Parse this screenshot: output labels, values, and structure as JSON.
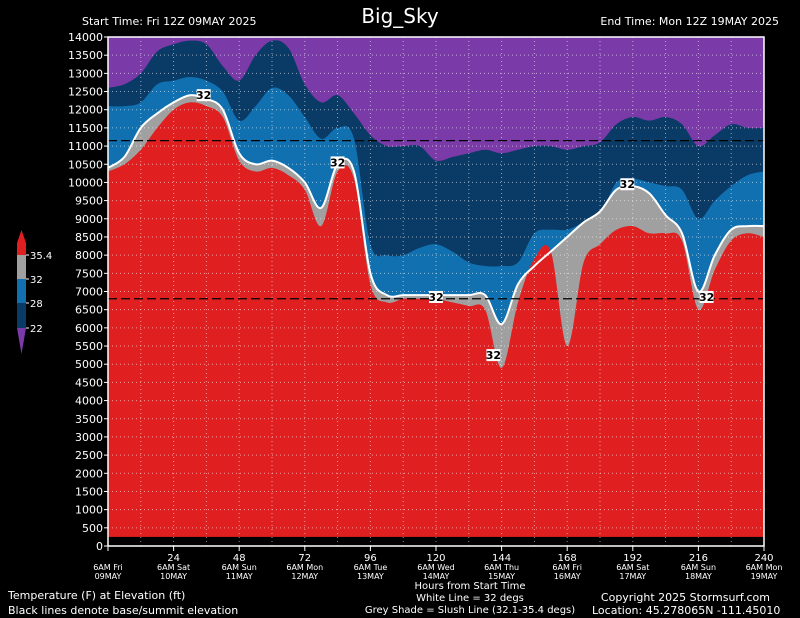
{
  "header": {
    "title": "Big_Sky",
    "start_time": "Start Time: Fri 12Z 09MAY 2025",
    "end_time": "End Time: Mon 12Z 19MAY 2025"
  },
  "footer": {
    "left_line1": "Temperature (F) at Elevation (ft)",
    "left_line2": "Black lines denote base/summit elevation",
    "center_line1": "Hours from Start Time",
    "center_line2": "White Line = 32 degs",
    "center_line3": "Grey Shade = Slush Line (32.1-35.4 degs)",
    "right_line1": "Copyright 2025 Stormsurf.com",
    "right_line2": "Location: 45.278065N  -111.45010"
  },
  "colors": {
    "above_slush": "#e02020",
    "slush": "#a0a0a0",
    "band_28_32": "#1070b0",
    "band_22_28": "#0a3a66",
    "below_22": "#7a3aa8",
    "freeze_line": "#ffffff",
    "grid": "#ffffff"
  },
  "chart_data": {
    "type": "area",
    "title": "Big_Sky",
    "xlabel": "Hours from Start Time",
    "ylabel": "Temperature (F) at Elevation (ft)",
    "xlim": [
      0,
      240
    ],
    "ylim": [
      0,
      14000
    ],
    "grid": true,
    "y_ticks": [
      0,
      500,
      1000,
      1500,
      2000,
      2500,
      3000,
      3500,
      4000,
      4500,
      5000,
      5500,
      6000,
      6500,
      7000,
      7500,
      8000,
      8500,
      9000,
      9500,
      10000,
      10500,
      11000,
      11500,
      12000,
      12500,
      13000,
      13500,
      14000
    ],
    "x_ticks": [
      {
        "hour": 0,
        "line1": "",
        "line2": "6AM Fri",
        "line3": "09MAY"
      },
      {
        "hour": 24,
        "line1": "24",
        "line2": "6AM Sat",
        "line3": "10MAY"
      },
      {
        "hour": 48,
        "line1": "48",
        "line2": "6AM Sun",
        "line3": "11MAY"
      },
      {
        "hour": 72,
        "line1": "72",
        "line2": "6AM Mon",
        "line3": "12MAY"
      },
      {
        "hour": 96,
        "line1": "96",
        "line2": "6AM Tue",
        "line3": "13MAY"
      },
      {
        "hour": 120,
        "line1": "120",
        "line2": "6AM Wed",
        "line3": "14MAY"
      },
      {
        "hour": 144,
        "line1": "144",
        "line2": "6AM Thu",
        "line3": "15MAY"
      },
      {
        "hour": 168,
        "line1": "168",
        "line2": "6AM Fri",
        "line3": "16MAY"
      },
      {
        "hour": 192,
        "line1": "192",
        "line2": "6AM Sat",
        "line3": "17MAY"
      },
      {
        "hour": 216,
        "line1": "216",
        "line2": "6AM Sun",
        "line3": "18MAY"
      },
      {
        "hour": 240,
        "line1": "240",
        "line2": "6AM Mon",
        "line3": "19MAY"
      }
    ],
    "base_elevation_ft": 6800,
    "summit_elevation_ft": 11150,
    "hours": [
      0,
      6,
      12,
      18,
      24,
      30,
      36,
      42,
      48,
      54,
      60,
      66,
      72,
      78,
      84,
      90,
      96,
      102,
      108,
      114,
      120,
      126,
      132,
      138,
      144,
      150,
      156,
      162,
      168,
      174,
      180,
      186,
      192,
      198,
      204,
      210,
      216,
      222,
      228,
      234,
      240
    ],
    "series": [
      {
        "name": "35.4",
        "values": [
          10300,
          10500,
          10900,
          11500,
          12000,
          12200,
          12100,
          11800,
          10600,
          10300,
          10400,
          10200,
          9800,
          8800,
          10300,
          10100,
          7200,
          6700,
          6800,
          6800,
          6800,
          6700,
          6600,
          6500,
          4900,
          6700,
          7900,
          8100,
          5500,
          7800,
          8300,
          8700,
          8800,
          8600,
          8600,
          8400,
          6500,
          7600,
          8400,
          8600,
          8500
        ]
      },
      {
        "name": "32",
        "values": [
          10400,
          10700,
          11500,
          11900,
          12200,
          12400,
          12300,
          12000,
          10800,
          10500,
          10600,
          10400,
          10000,
          9300,
          10500,
          10300,
          7500,
          6900,
          6900,
          6900,
          6900,
          6900,
          6900,
          6900,
          6100,
          7200,
          7700,
          8100,
          8500,
          8900,
          9200,
          9800,
          9900,
          9700,
          9100,
          8600,
          7000,
          8000,
          8700,
          8800,
          8800
        ]
      },
      {
        "name": "28",
        "values": [
          12100,
          12100,
          12200,
          12700,
          12800,
          12900,
          12800,
          12500,
          11700,
          12100,
          12600,
          12400,
          11800,
          11200,
          11500,
          11200,
          8300,
          8000,
          8000,
          8200,
          8300,
          8100,
          7800,
          7700,
          7700,
          7800,
          8600,
          8700,
          8700,
          8900,
          9100,
          10000,
          10100,
          10000,
          9900,
          9800,
          9000,
          9500,
          9900,
          10200,
          10300
        ]
      },
      {
        "name": "22",
        "values": [
          12600,
          12700,
          13000,
          13600,
          13800,
          13900,
          13800,
          13200,
          12800,
          13500,
          13900,
          13700,
          12700,
          12200,
          12400,
          11900,
          11300,
          11000,
          11000,
          11000,
          10600,
          10700,
          10800,
          10900,
          10800,
          10900,
          11000,
          11000,
          10900,
          11000,
          11100,
          11600,
          11800,
          11700,
          11800,
          11600,
          11000,
          11300,
          11600,
          11500,
          11500
        ]
      }
    ],
    "legend": {
      "position": "left",
      "entries": [
        "35.4",
        "32",
        "28",
        "22"
      ]
    },
    "annotations": [
      {
        "label": "32",
        "hour": 35,
        "elevation": 12400
      },
      {
        "label": "32",
        "hour": 84,
        "elevation": 10550
      },
      {
        "label": "32",
        "hour": 120,
        "elevation": 6850
      },
      {
        "label": "32",
        "hour": 141,
        "elevation": 5250
      },
      {
        "label": "32",
        "hour": 190,
        "elevation": 9950
      },
      {
        "label": "32",
        "hour": 219,
        "elevation": 6850
      }
    ]
  }
}
